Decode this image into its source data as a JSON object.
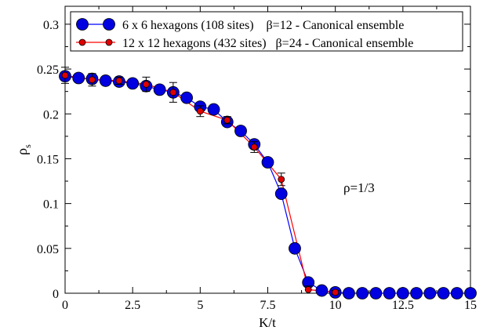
{
  "chart_data": {
    "type": "line",
    "xlabel": "K/t",
    "ylabel_main": "ρ",
    "ylabel_sub": "s",
    "xlim": [
      0,
      15
    ],
    "ylim": [
      0,
      0.32
    ],
    "xticks": [
      0,
      2.5,
      5,
      7.5,
      10,
      12.5,
      15
    ],
    "xtick_labels": [
      "0",
      "2.5",
      "5",
      "7.5",
      "10",
      "12.5",
      "15"
    ],
    "yticks": [
      0,
      0.05,
      0.1,
      0.15,
      0.2,
      0.25,
      0.3
    ],
    "ytick_labels": [
      "0",
      "0.05",
      "0.1",
      "0.15",
      "0.2",
      "0.25",
      "0.3"
    ],
    "grid": false,
    "legend_position": "top-right",
    "annotation": "ρ=1/3",
    "series": [
      {
        "name": "6 x 6 hexagons (108 sites)    β=12 - Canonical ensemble",
        "color": "#0000e0",
        "line_color": "#0000ff",
        "marker": "large-circle",
        "x": [
          0,
          0.5,
          1,
          1.5,
          2,
          2.5,
          3,
          3.5,
          4,
          4.5,
          5,
          5.5,
          6,
          6.5,
          7,
          7.5,
          8,
          8.5,
          9,
          9.5,
          10,
          10.5,
          11,
          11.5,
          12,
          12.5,
          13,
          13.5,
          14,
          14.5,
          15
        ],
        "y": [
          0.242,
          0.24,
          0.239,
          0.237,
          0.236,
          0.234,
          0.231,
          0.227,
          0.224,
          0.218,
          0.208,
          0.205,
          0.191,
          0.181,
          0.166,
          0.146,
          0.111,
          0.05,
          0.012,
          0.003,
          0.001,
          0,
          0,
          0,
          0,
          0,
          0,
          0,
          0,
          0,
          0
        ]
      },
      {
        "name": "12 x 12 hexagons (432 sites)   β=24 - Canonical ensemble",
        "color": "#e00000",
        "line_color": "#ff0000",
        "marker": "small-circle",
        "x": [
          0,
          1,
          2,
          3,
          4,
          5,
          6,
          7,
          8,
          9,
          10
        ],
        "y": [
          0.243,
          0.238,
          0.237,
          0.233,
          0.224,
          0.203,
          0.193,
          0.163,
          0.127,
          0.004,
          0.001
        ],
        "err": [
          0.009,
          0.007,
          0.004,
          0.008,
          0.011,
          0.006,
          0.004,
          0.006,
          0.007,
          0.004,
          0.002
        ]
      }
    ]
  }
}
